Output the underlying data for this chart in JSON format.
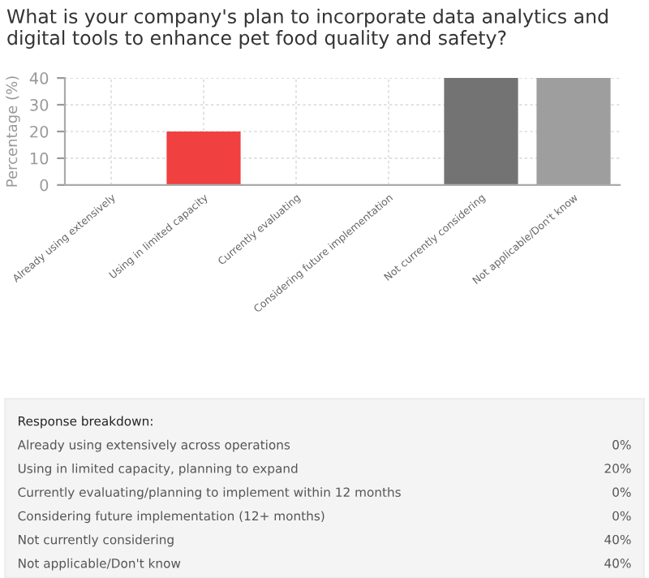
{
  "chart_data": {
    "type": "bar",
    "title": "What is your company's plan to incorporate data analytics and digital tools to enhance pet food quality and safety?",
    "ylabel": "Percentage (%)",
    "categories": [
      "Already using extensively",
      "Using in limited capacity",
      "Currently evaluating",
      "Considering future implementation",
      "Not currently considering",
      "Not applicable/Don't know"
    ],
    "values": [
      0,
      20,
      0,
      0,
      40,
      40
    ],
    "colors": [
      "#2e8b57",
      "#f04040",
      "#f0a030",
      "#4080c0",
      "#737373",
      "#9e9e9e"
    ],
    "annotations": [
      "Response breakdown:",
      "Already using extensively across operations",
      "0%",
      "Using in limited capacity, planning to expand",
      "20%",
      "Currently evaluating/planning to implement within 12 months",
      "0%",
      "Considering future implementation (12+ months)",
      "0%",
      "Not currently considering",
      "40%",
      "Not applicable/Don't know",
      "40%"
    ],
    "ylim": [
      0,
      40
    ],
    "yticks": [
      0,
      10,
      20,
      30,
      40
    ],
    "grid": true
  }
}
